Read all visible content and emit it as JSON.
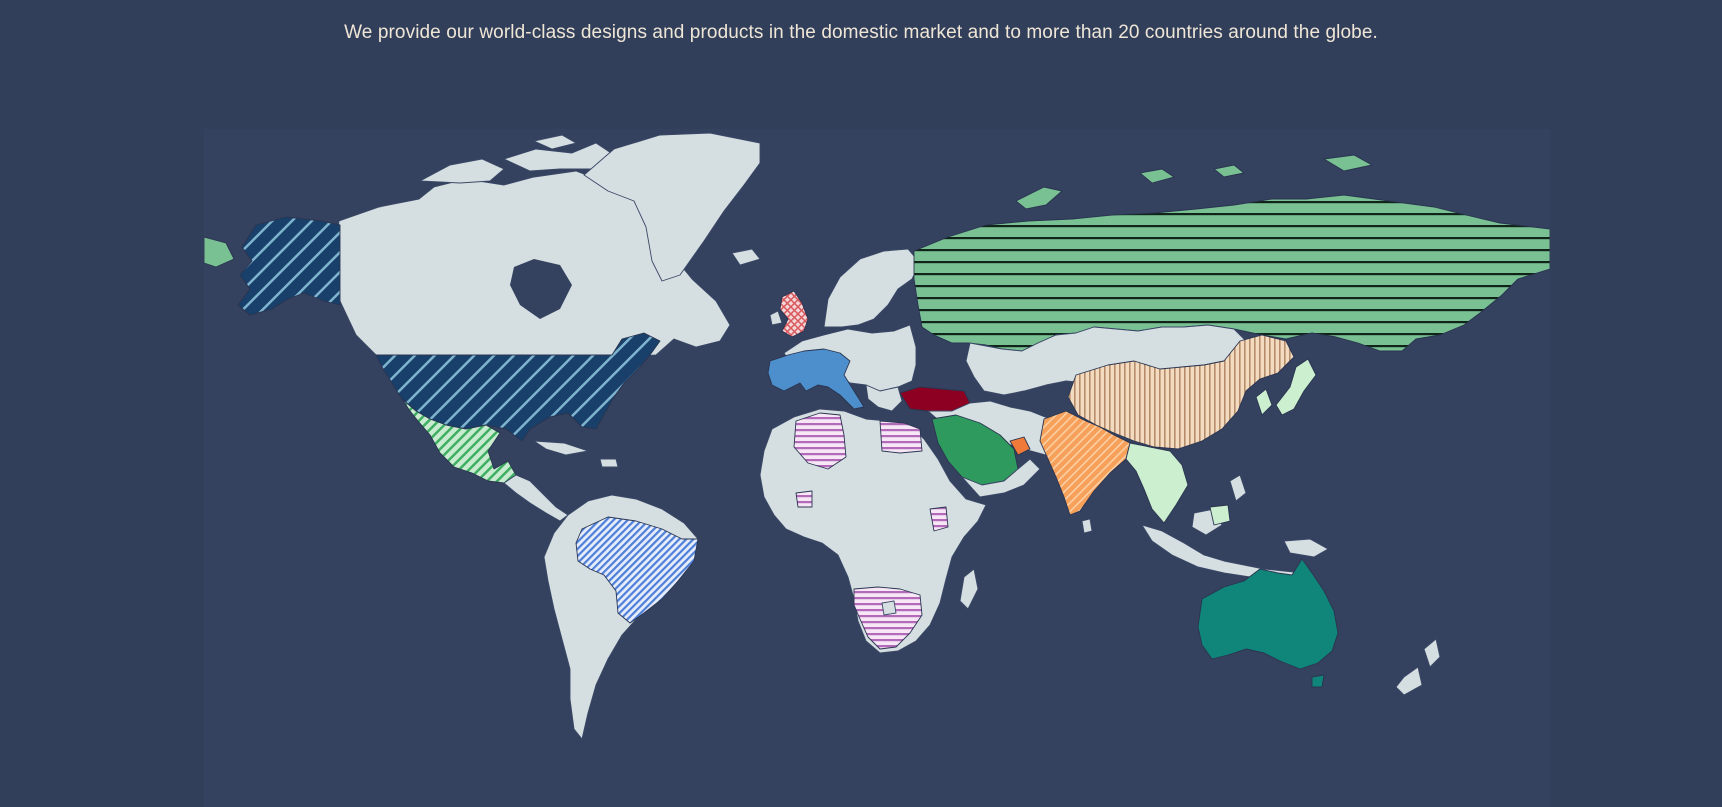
{
  "intro": {
    "text": "We provide our world-class designs and products in the domestic market and to more than 20 countries around the globe."
  },
  "map": {
    "background_color": "#313f5b",
    "land_color": "#d5dfe2",
    "highlighted_regions": [
      {
        "region": "USA & Alaska",
        "fill": "#18406a",
        "pattern": "diagonal stripes",
        "stripe_color": "#7fb4cf"
      },
      {
        "region": "Mexico",
        "fill": "#c9ecd0",
        "pattern": "diagonal stripes",
        "stripe_color": "#3fae62"
      },
      {
        "region": "Brazil",
        "fill": "#e6eefc",
        "pattern": "diagonal stripes",
        "stripe_color": "#4f7fd8"
      },
      {
        "region": "United Kingdom",
        "fill": "#f4d6d6",
        "pattern": "crosshatch",
        "stripe_color": "#d9595f"
      },
      {
        "region": "France / Germany / Italy / Spain",
        "fill": "#4d8fcd",
        "pattern": "solid"
      },
      {
        "region": "Turkey",
        "fill": "#8d0021",
        "pattern": "solid"
      },
      {
        "region": "Russia",
        "fill": "#79c193",
        "pattern": "horizontal stripes",
        "stripe_color": "#10241a"
      },
      {
        "region": "Saudi Arabia",
        "fill": "#2f9a5e",
        "pattern": "solid"
      },
      {
        "region": "UAE",
        "fill": "#f07a3a",
        "pattern": "solid"
      },
      {
        "region": "Algeria / Libya / Egypt / Mali / Kenya / Namibia / South Africa",
        "fill": "#f6e6f6",
        "pattern": "horizontal stripes",
        "stripe_color": "#b36ab8"
      },
      {
        "region": "China",
        "fill": "#f3dbbf",
        "pattern": "vertical stripes",
        "stripe_color": "#b58d6c"
      },
      {
        "region": "India",
        "fill": "#f6a05a",
        "pattern": "diagonal stripes",
        "stripe_color": "#fbd0a4"
      },
      {
        "region": "Southeast Asia",
        "fill": "#ccefcf",
        "pattern": "solid"
      },
      {
        "region": "Australia",
        "fill": "#10867a",
        "pattern": "solid"
      }
    ]
  }
}
